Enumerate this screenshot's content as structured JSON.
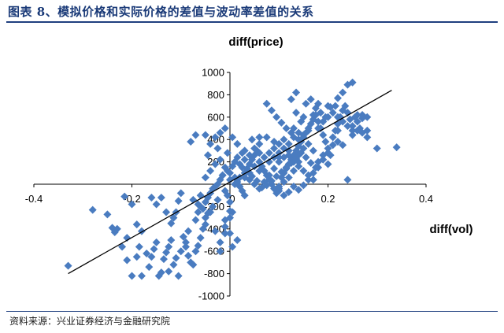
{
  "figure": {
    "title": "图表 8、模拟价格和实际价格的差值与波动率差值的关系",
    "source": "资料来源：兴业证券经济与金融研究院"
  },
  "chart_data": {
    "type": "scatter",
    "title": "",
    "xlabel": "diff(vol)",
    "ylabel": "diff(price)",
    "xlim": [
      -0.4,
      0.4
    ],
    "ylim": [
      -1000,
      1000
    ],
    "x_ticks": [
      -0.4,
      -0.2,
      0,
      0.2,
      0.4
    ],
    "x_tick_labels": [
      "-0.4",
      "-0.2",
      "0",
      "0.2",
      "0.4"
    ],
    "y_ticks": [
      -1000,
      -800,
      -600,
      -400,
      -200,
      200,
      400,
      600,
      800,
      1000
    ],
    "y_tick_labels": [
      "-1000",
      "-800",
      "-600",
      "-400",
      "-200",
      "200",
      "400",
      "600",
      "800",
      "1000"
    ],
    "grid": false,
    "marker_color": "#4a7cc0",
    "trendline": {
      "x": [
        -0.33,
        0.33
      ],
      "y": [
        -800,
        840
      ],
      "color": "#000000"
    },
    "points": [
      [
        -0.33,
        -730
      ],
      [
        -0.28,
        -230
      ],
      [
        -0.24,
        -390
      ],
      [
        -0.235,
        -430
      ],
      [
        -0.22,
        -560
      ],
      [
        -0.21,
        -680
      ],
      [
        -0.2,
        -820
      ],
      [
        -0.215,
        -110
      ],
      [
        -0.2,
        -180
      ],
      [
        -0.19,
        -360
      ],
      [
        -0.18,
        -420
      ],
      [
        -0.185,
        -560
      ],
      [
        -0.17,
        -620
      ],
      [
        -0.165,
        -740
      ],
      [
        -0.16,
        -650
      ],
      [
        -0.155,
        -580
      ],
      [
        -0.15,
        -520
      ],
      [
        -0.145,
        -820
      ],
      [
        -0.14,
        -790
      ],
      [
        -0.135,
        -670
      ],
      [
        -0.13,
        -610
      ],
      [
        -0.125,
        -560
      ],
      [
        -0.12,
        -500
      ],
      [
        -0.115,
        -300
      ],
      [
        -0.11,
        -250
      ],
      [
        -0.105,
        -150
      ],
      [
        -0.16,
        -120
      ],
      [
        -0.15,
        -180
      ],
      [
        -0.13,
        -250
      ],
      [
        -0.12,
        -350
      ],
      [
        -0.1,
        -80
      ],
      [
        -0.095,
        -470
      ],
      [
        -0.09,
        -520
      ],
      [
        -0.085,
        -640
      ],
      [
        -0.08,
        -700
      ],
      [
        -0.075,
        -720
      ],
      [
        -0.07,
        -600
      ],
      [
        -0.065,
        -550
      ],
      [
        -0.06,
        -480
      ],
      [
        -0.055,
        -400
      ],
      [
        -0.05,
        -360
      ],
      [
        -0.07,
        -320
      ],
      [
        -0.065,
        -250
      ],
      [
        -0.06,
        -200
      ],
      [
        -0.05,
        -160
      ],
      [
        -0.045,
        -120
      ],
      [
        -0.04,
        -80
      ],
      [
        -0.035,
        -40
      ],
      [
        -0.03,
        -20
      ],
      [
        -0.025,
        0
      ],
      [
        -0.02,
        40
      ],
      [
        -0.015,
        80
      ],
      [
        -0.01,
        -60
      ],
      [
        -0.005,
        -100
      ],
      [
        0,
        -160
      ],
      [
        -0.05,
        -300
      ],
      [
        -0.03,
        -420
      ],
      [
        -0.02,
        -520
      ],
      [
        -0.01,
        -380
      ],
      [
        0.0,
        -300
      ],
      [
        0.005,
        -250
      ],
      [
        -0.02,
        -600
      ],
      [
        -0.04,
        -250
      ],
      [
        -0.06,
        -100
      ],
      [
        -0.05,
        60
      ],
      [
        -0.04,
        120
      ],
      [
        -0.03,
        180
      ],
      [
        -0.045,
        260
      ],
      [
        -0.025,
        320
      ],
      [
        -0.02,
        220
      ],
      [
        -0.01,
        150
      ],
      [
        0.0,
        100
      ],
      [
        0.01,
        60
      ],
      [
        0.015,
        20
      ],
      [
        0.02,
        -20
      ],
      [
        0.025,
        -60
      ],
      [
        0.03,
        -100
      ],
      [
        0.035,
        140
      ],
      [
        0.04,
        180
      ],
      [
        0.045,
        220
      ],
      [
        0.05,
        260
      ],
      [
        0.055,
        300
      ],
      [
        0.06,
        200
      ],
      [
        0.065,
        160
      ],
      [
        0.07,
        120
      ],
      [
        0.075,
        80
      ],
      [
        0.08,
        40
      ],
      [
        0.085,
        0
      ],
      [
        0.09,
        -40
      ],
      [
        0.095,
        -80
      ],
      [
        0.1,
        -20
      ],
      [
        0.105,
        60
      ],
      [
        0.11,
        100
      ],
      [
        0.115,
        140
      ],
      [
        0.12,
        180
      ],
      [
        0.125,
        220
      ],
      [
        0.13,
        260
      ],
      [
        0.135,
        300
      ],
      [
        0.14,
        340
      ],
      [
        0.145,
        380
      ],
      [
        0.15,
        420
      ],
      [
        0.155,
        460
      ],
      [
        0.16,
        500
      ],
      [
        0.165,
        540
      ],
      [
        0.17,
        580
      ],
      [
        0.175,
        620
      ],
      [
        0.18,
        560
      ],
      [
        0.185,
        500
      ],
      [
        0.19,
        440
      ],
      [
        0.195,
        380
      ],
      [
        0.2,
        320
      ],
      [
        0.205,
        260
      ],
      [
        0.21,
        420
      ],
      [
        0.215,
        480
      ],
      [
        0.22,
        540
      ],
      [
        0.225,
        600
      ],
      [
        0.23,
        660
      ],
      [
        0.235,
        700
      ],
      [
        0.24,
        640
      ],
      [
        0.245,
        580
      ],
      [
        0.25,
        520
      ],
      [
        0.255,
        600
      ],
      [
        0.26,
        560
      ],
      [
        0.265,
        500
      ],
      [
        0.27,
        620
      ],
      [
        0.28,
        600
      ],
      [
        0.24,
        890
      ],
      [
        0.25,
        910
      ],
      [
        0.23,
        820
      ],
      [
        0.22,
        770
      ],
      [
        0.215,
        700
      ],
      [
        0.205,
        690
      ],
      [
        0.2,
        600
      ],
      [
        0.19,
        560
      ],
      [
        0.18,
        500
      ],
      [
        0.16,
        480
      ],
      [
        0.15,
        440
      ],
      [
        0.14,
        400
      ],
      [
        0.13,
        420
      ],
      [
        0.12,
        360
      ],
      [
        0.11,
        320
      ],
      [
        0.1,
        280
      ],
      [
        0.09,
        240
      ],
      [
        0.08,
        200
      ],
      [
        0.07,
        240
      ],
      [
        0.06,
        280
      ],
      [
        0.05,
        320
      ],
      [
        0.04,
        260
      ],
      [
        0.03,
        220
      ],
      [
        0.02,
        180
      ],
      [
        0.025,
        280
      ],
      [
        0.015,
        240
      ],
      [
        0.01,
        200
      ],
      [
        0.005,
        160
      ],
      [
        -0.005,
        120
      ],
      [
        -0.015,
        80
      ],
      [
        0.0,
        40
      ],
      [
        0.01,
        0
      ],
      [
        0.02,
        60
      ],
      [
        0.03,
        100
      ],
      [
        0.04,
        40
      ],
      [
        0.05,
        0
      ],
      [
        0.06,
        -40
      ],
      [
        0.07,
        20
      ],
      [
        0.08,
        80
      ],
      [
        0.09,
        140
      ],
      [
        0.1,
        200
      ],
      [
        0.11,
        240
      ],
      [
        0.12,
        300
      ],
      [
        0.13,
        200
      ],
      [
        0.14,
        160
      ],
      [
        0.15,
        120
      ],
      [
        0.16,
        80
      ],
      [
        0.17,
        40
      ],
      [
        0.18,
        200
      ],
      [
        0.19,
        260
      ],
      [
        0.2,
        180
      ],
      [
        0.17,
        300
      ],
      [
        0.16,
        360
      ],
      [
        0.15,
        320
      ],
      [
        0.14,
        260
      ],
      [
        0.13,
        120
      ],
      [
        0.12,
        60
      ],
      [
        0.11,
        20
      ],
      [
        0.1,
        -60
      ],
      [
        0.06,
        120
      ],
      [
        0.05,
        160
      ],
      [
        0.04,
        100
      ],
      [
        0.03,
        60
      ],
      [
        0.075,
        720
      ],
      [
        0.085,
        660
      ],
      [
        0.095,
        600
      ],
      [
        0.105,
        550
      ],
      [
        0.115,
        500
      ],
      [
        0.125,
        460
      ],
      [
        0.135,
        640
      ],
      [
        0.145,
        560
      ],
      [
        0.155,
        720
      ],
      [
        0.135,
        820
      ],
      [
        0.125,
        760
      ],
      [
        0.165,
        760
      ],
      [
        0.175,
        680
      ],
      [
        0.185,
        640
      ],
      [
        0.195,
        600
      ],
      [
        0.2,
        280
      ],
      [
        0.19,
        220
      ],
      [
        0.18,
        150
      ],
      [
        0.17,
        100
      ],
      [
        0.16,
        40
      ],
      [
        0.15,
        -10
      ],
      [
        0.14,
        -50
      ],
      [
        0.13,
        -20
      ],
      [
        0.12,
        -70
      ],
      [
        0.11,
        -100
      ],
      [
        0.1,
        -40
      ],
      [
        -0.08,
        380
      ],
      [
        -0.07,
        440
      ],
      [
        -0.05,
        440
      ],
      [
        -0.04,
        360
      ],
      [
        -0.03,
        420
      ],
      [
        -0.02,
        460
      ],
      [
        -0.01,
        500
      ],
      [
        -0.005,
        280
      ],
      [
        0.005,
        420
      ],
      [
        0.015,
        360
      ],
      [
        0.03,
        300
      ],
      [
        0.045,
        400
      ],
      [
        0.06,
        360
      ],
      [
        0.075,
        420
      ],
      [
        0.09,
        380
      ],
      [
        0.1,
        360
      ],
      [
        0.21,
        350
      ],
      [
        0.22,
        380
      ],
      [
        0.23,
        350
      ],
      [
        0.25,
        440
      ],
      [
        0.26,
        480
      ],
      [
        0.27,
        460
      ],
      [
        0.28,
        420
      ],
      [
        0.3,
        320
      ],
      [
        0.34,
        330
      ],
      [
        0.24,
        40
      ],
      [
        0.22,
        480
      ],
      [
        0.175,
        150
      ],
      [
        0.165,
        190
      ],
      [
        0.155,
        240
      ],
      [
        0.145,
        280
      ],
      [
        0.135,
        230
      ],
      [
        0.125,
        190
      ],
      [
        0.115,
        150
      ],
      [
        0.105,
        110
      ],
      [
        0.095,
        70
      ],
      [
        0.085,
        30
      ],
      [
        0.075,
        -10
      ],
      [
        0.065,
        -30
      ],
      [
        0.055,
        30
      ],
      [
        0.045,
        70
      ],
      [
        0.035,
        110
      ],
      [
        0.025,
        150
      ],
      [
        -0.025,
        -140
      ],
      [
        -0.035,
        -200
      ],
      [
        -0.045,
        -260
      ],
      [
        -0.055,
        -220
      ],
      [
        -0.065,
        -180
      ],
      [
        -0.075,
        -140
      ],
      [
        -0.085,
        -420
      ],
      [
        -0.09,
        -560
      ],
      [
        -0.1,
        -600
      ],
      [
        -0.11,
        -660
      ],
      [
        -0.115,
        -720
      ],
      [
        -0.125,
        -780
      ],
      [
        -0.105,
        -820
      ],
      [
        -0.18,
        -820
      ],
      [
        -0.19,
        -650
      ],
      [
        -0.21,
        -480
      ],
      [
        -0.23,
        -400
      ],
      [
        -0.25,
        -270
      ],
      [
        -0.14,
        -120
      ],
      [
        -0.01,
        -440
      ],
      [
        0.005,
        -560
      ],
      [
        0.015,
        -500
      ],
      [
        0.0,
        -440
      ],
      [
        -0.01,
        -320
      ],
      [
        0.0,
        -240
      ],
      [
        0.06,
        420
      ],
      [
        0.08,
        280
      ],
      [
        0.09,
        320
      ],
      [
        0.11,
        400
      ],
      [
        0.13,
        500
      ],
      [
        0.14,
        460
      ],
      [
        0.15,
        600
      ],
      [
        0.17,
        620
      ],
      [
        0.18,
        720
      ],
      [
        0.2,
        700
      ],
      [
        0.21,
        640
      ],
      [
        0.22,
        600
      ],
      [
        0.23,
        560
      ],
      [
        0.24,
        520
      ],
      [
        0.25,
        480
      ],
      [
        0.26,
        620
      ],
      [
        0.27,
        590
      ],
      [
        0.28,
        480
      ],
      [
        0.14,
        200
      ],
      [
        0.12,
        260
      ],
      [
        0.1,
        240
      ]
    ]
  }
}
